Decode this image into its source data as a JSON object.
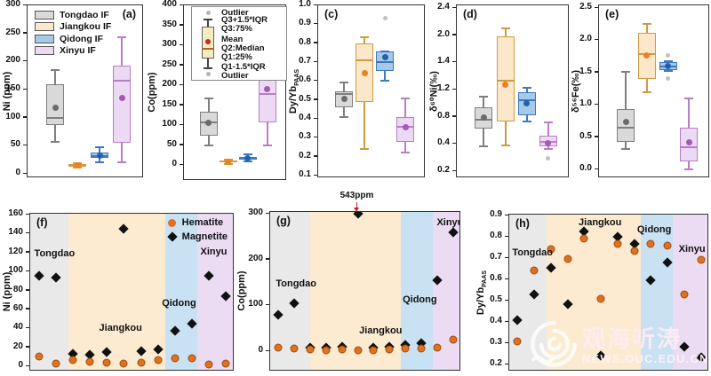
{
  "watermark": {
    "cn": "观海听涛",
    "url": "NEWS.OUC.EDU.CN"
  },
  "group_styles": [
    {
      "name": "Tongdao IF",
      "fill": "#d9d9d9",
      "stroke": "#7f7f7f",
      "accent": "#6b6b6b",
      "band": "#e9e9e9"
    },
    {
      "name": "Jiangkou IF",
      "fill": "#fbe8ca",
      "stroke": "#d09a40",
      "accent": "#e8821e",
      "band": "#fcebd0"
    },
    {
      "name": "Qidong IF",
      "fill": "#a7c9e9",
      "stroke": "#3d79bd",
      "accent": "#2062ae",
      "band": "#c8e2f4"
    },
    {
      "name": "Xinyu IF",
      "fill": "#ecd9f3",
      "stroke": "#b97cc7",
      "accent": "#a55ab4",
      "band": "#ebdcf4"
    }
  ],
  "boxplot_legend": {
    "items": [
      "Outlier",
      "Q3+1.5*IQR",
      "Q3:75%",
      "Mean",
      "Q2:Median",
      "Q1:25%",
      "Q1-1.5*IQR",
      "Outlier"
    ],
    "sample_fill": "#f6edbe",
    "sample_stroke": "#606060",
    "mean_color": "#c62828",
    "median_color": "#b4622d"
  },
  "scatter_legend": [
    {
      "label": "Hematite",
      "marker": "circle",
      "color": "#e2711d"
    },
    {
      "label": "Magnetite",
      "marker": "diamond",
      "color": "#111111"
    }
  ],
  "annotation": {
    "text": "543ppm",
    "panel": "g",
    "point_index": 5
  },
  "chart_data": [
    {
      "id": "a",
      "letter": "(a)",
      "letter_side": "right",
      "type": "box",
      "ylabel": "Ni (ppm)",
      "ymin": 0,
      "ymax": 300,
      "yticks": [
        "300",
        "250",
        "200",
        "150",
        "100",
        "50",
        "0"
      ],
      "show_group_legend": true,
      "boxes": [
        {
          "group": "Tongdao",
          "low": 57,
          "q1": 87,
          "median": 100,
          "mean": 117,
          "q3": 160,
          "high": 185,
          "outliers": []
        },
        {
          "group": "Jiangkou",
          "low": 11,
          "q1": 13,
          "median": 15,
          "mean": 15,
          "q3": 17,
          "high": 19,
          "outliers": []
        },
        {
          "group": "Qidong",
          "low": 20,
          "q1": 28,
          "median": 32,
          "mean": 33,
          "q3": 38,
          "high": 47,
          "outliers": []
        },
        {
          "group": "Xinyu",
          "low": 20,
          "q1": 55,
          "median": 166,
          "mean": 135,
          "q3": 192,
          "high": 243,
          "outliers": []
        }
      ]
    },
    {
      "id": "b",
      "letter": "(b)",
      "letter_side": "right",
      "type": "box",
      "ylabel": "Co(ppm)",
      "ymin": 0,
      "ymax": 400,
      "yticks": [
        "400",
        "350",
        "300",
        "250",
        "200",
        "150",
        "100",
        "50",
        "0"
      ],
      "show_boxplot_legend": true,
      "boxes": [
        {
          "group": "Tongdao",
          "low": 49,
          "q1": 74,
          "median": 106,
          "mean": 106,
          "q3": 134,
          "high": 166,
          "outliers": []
        },
        {
          "group": "Jiangkou",
          "low": 3,
          "q1": 6,
          "median": 8,
          "mean": 8,
          "q3": 11,
          "high": 14,
          "outliers": []
        },
        {
          "group": "Qidong",
          "low": 8,
          "q1": 13,
          "median": 16,
          "mean": 16,
          "q3": 21,
          "high": 26,
          "outliers": []
        },
        {
          "group": "Xinyu",
          "low": 49,
          "q1": 107,
          "median": 178,
          "mean": 190,
          "q3": 263,
          "high": 384,
          "outliers": []
        }
      ]
    },
    {
      "id": "c",
      "letter": "(c)",
      "letter_side": "left",
      "type": "box",
      "ylabel": "Dy/Yb",
      "ylabel_sub": "PAAS",
      "ymin": 0.1,
      "ymax": 1.0,
      "yticks": [
        "1.0",
        "0.9",
        "0.8",
        "0.7",
        "0.6",
        "0.5",
        "0.4",
        "0.3",
        "0.2",
        "0.1"
      ],
      "boxes": [
        {
          "group": "Tongdao",
          "low": 0.41,
          "q1": 0.46,
          "median": 0.53,
          "mean": 0.505,
          "q3": 0.545,
          "high": 0.59,
          "outliers": []
        },
        {
          "group": "Jiangkou",
          "low": 0.24,
          "q1": 0.49,
          "median": 0.71,
          "mean": 0.64,
          "q3": 0.8,
          "high": 0.83,
          "outliers": []
        },
        {
          "group": "Qidong",
          "low": 0.6,
          "q1": 0.655,
          "median": 0.7,
          "mean": 0.725,
          "q3": 0.755,
          "high": 0.755,
          "outliers": [
            0.93
          ]
        },
        {
          "group": "Xinyu",
          "low": 0.22,
          "q1": 0.28,
          "median": 0.36,
          "mean": 0.355,
          "q3": 0.41,
          "high": 0.51,
          "outliers": []
        }
      ]
    },
    {
      "id": "d",
      "letter": "(d)",
      "letter_side": "left",
      "type": "box",
      "ylabel": "δ⁶⁰Ni(‰)",
      "ymin": 0.0,
      "ymax": 2.4,
      "yticks": [
        "2.4",
        "2.0",
        "1.4",
        "1.2",
        "0.8",
        "0.4",
        "0.2"
      ],
      "boxes": [
        {
          "group": "Tongdao",
          "low": 0.36,
          "q1": 0.62,
          "median": 0.76,
          "mean": 0.79,
          "q3": 0.94,
          "high": 1.1,
          "outliers": []
        },
        {
          "group": "Jiangkou",
          "low": 0.38,
          "q1": 0.73,
          "median": 1.33,
          "mean": 1.27,
          "q3": 1.98,
          "high": 2.1,
          "outliers": []
        },
        {
          "group": "Qidong",
          "low": 0.73,
          "q1": 0.82,
          "median": 1.04,
          "mean": 1.0,
          "q3": 1.16,
          "high": 1.22,
          "outliers": []
        },
        {
          "group": "Xinyu",
          "low": 0.33,
          "q1": 0.37,
          "median": 0.43,
          "mean": 0.41,
          "q3": 0.52,
          "high": 0.72,
          "outliers": [
            0.19
          ]
        }
      ]
    },
    {
      "id": "e",
      "letter": "(e)",
      "letter_side": "left",
      "type": "box",
      "ylabel": "δ⁵⁶Fe(‰)",
      "ymin": 0.0,
      "ymax": 2.5,
      "yticks": [
        "2.5",
        "2.0",
        "1.5",
        "1.0",
        "0.5",
        "0.0"
      ],
      "boxes": [
        {
          "group": "Tongdao",
          "low": 0.31,
          "q1": 0.42,
          "median": 0.65,
          "mean": 0.73,
          "q3": 0.93,
          "high": 1.51,
          "outliers": []
        },
        {
          "group": "Jiangkou",
          "low": 1.2,
          "q1": 1.4,
          "median": 1.78,
          "mean": 1.76,
          "q3": 2.11,
          "high": 2.25,
          "outliers": []
        },
        {
          "group": "Qidong",
          "low": 1.52,
          "q1": 1.54,
          "median": 1.6,
          "mean": 1.6,
          "q3": 1.66,
          "high": 1.68,
          "outliers": [
            1.77,
            1.41
          ]
        },
        {
          "group": "Xinyu",
          "low": 0.0,
          "q1": 0.13,
          "median": 0.35,
          "mean": 0.42,
          "q3": 0.65,
          "high": 1.1,
          "outliers": []
        }
      ]
    },
    {
      "id": "f",
      "letter": "(f)",
      "letter_side": "left",
      "type": "scatter",
      "ylabel": "Ni (ppm)",
      "ymin": 0,
      "ymax": 160,
      "yticks": [
        "160",
        "140",
        "120",
        "100",
        "80",
        "60",
        "40",
        "20",
        "0"
      ],
      "show_scatter_legend": true,
      "bands": [
        {
          "name": "Tongdao",
          "from": 0,
          "to": 0.19
        },
        {
          "name": "Jiangkou",
          "from": 0.19,
          "to": 0.665
        },
        {
          "name": "Qidong",
          "from": 0.665,
          "to": 0.825
        },
        {
          "name": "Xinyu",
          "from": 0.825,
          "to": 1
        }
      ],
      "region_labels": [
        {
          "text": "Tongdao",
          "x": 0.02,
          "y": 0.22
        },
        {
          "text": "Jiangkou",
          "x": 0.34,
          "y": 0.7
        },
        {
          "text": "Qidong",
          "x": 0.65,
          "y": 0.54
        },
        {
          "text": "Xinyu",
          "x": 0.84,
          "y": 0.21
        }
      ],
      "series": [
        {
          "name": "Magnetite",
          "marker": "diamond",
          "color": "#111111",
          "values": [
            95,
            94,
            13,
            12,
            15,
            145,
            16,
            18,
            37,
            45,
            95,
            74
          ]
        },
        {
          "name": "Hematite",
          "marker": "circle",
          "color": "#e2711d",
          "values": [
            10,
            3,
            7,
            5,
            4,
            3,
            4,
            7,
            8,
            8,
            2,
            3
          ]
        }
      ]
    },
    {
      "id": "g",
      "letter": "(g)",
      "letter_side": "left",
      "type": "scatter",
      "ylabel": "Co(ppm)",
      "ymin": 0,
      "ymax": 300,
      "yticks": [
        "300",
        "200",
        "100",
        "0"
      ],
      "bands": [
        {
          "name": "Tongdao",
          "from": 0,
          "to": 0.21
        },
        {
          "name": "Jiangkou",
          "from": 0.21,
          "to": 0.69
        },
        {
          "name": "Qidong",
          "from": 0.69,
          "to": 0.86
        },
        {
          "name": "Xinyu",
          "from": 0.86,
          "to": 1
        }
      ],
      "region_labels": [
        {
          "text": "Tongdao",
          "x": 0.03,
          "y": 0.42
        },
        {
          "text": "Jiangkou",
          "x": 0.47,
          "y": 0.72
        },
        {
          "text": "Qidong",
          "x": 0.7,
          "y": 0.52
        },
        {
          "text": "Xinyu",
          "x": 0.88,
          "y": 0.035
        }
      ],
      "series": [
        {
          "name": "Magnetite",
          "marker": "diamond",
          "color": "#111111",
          "values": [
            80,
            105,
            8,
            8,
            10,
            300,
            8,
            10,
            13,
            18,
            155,
            260
          ]
        },
        {
          "name": "Hematite",
          "marker": "circle",
          "color": "#e2711d",
          "values": [
            8,
            5,
            3,
            2,
            4,
            2,
            2,
            3,
            5,
            5,
            7,
            25
          ]
        }
      ]
    },
    {
      "id": "h",
      "letter": "(h)",
      "letter_side": "left",
      "type": "scatter",
      "ylabel": "Dy/Yb",
      "ylabel_sub": "PAAS",
      "ymin": 0.2,
      "ymax": 0.9,
      "yticks": [
        "0.9",
        "0.8",
        "0.7",
        "0.6",
        "0.5",
        "0.4",
        "0.3",
        "0.2"
      ],
      "bands": [
        {
          "name": "Tongdao",
          "from": 0,
          "to": 0.19
        },
        {
          "name": "Jiangkou",
          "from": 0.19,
          "to": 0.665
        },
        {
          "name": "Qidong",
          "from": 0.665,
          "to": 0.825
        },
        {
          "name": "Xinyu",
          "from": 0.825,
          "to": 1
        }
      ],
      "region_labels": [
        {
          "text": "Tongdao",
          "x": 0.015,
          "y": 0.21
        },
        {
          "text": "Jiangkou",
          "x": 0.35,
          "y": 0.015
        },
        {
          "text": "Qidong",
          "x": 0.645,
          "y": 0.06
        },
        {
          "text": "Xinyu",
          "x": 0.855,
          "y": 0.19
        }
      ],
      "series": [
        {
          "name": "Magnetite",
          "marker": "diamond",
          "color": "#111111",
          "values": [
            0.41,
            0.53,
            0.655,
            0.485,
            0.825,
            0.24,
            0.8,
            0.765,
            0.595,
            0.68,
            0.285,
            0.235
          ]
        },
        {
          "name": "Hematite",
          "marker": "circle",
          "color": "#e2711d",
          "values": [
            0.31,
            0.64,
            0.74,
            0.695,
            0.79,
            0.51,
            0.765,
            0.735,
            0.765,
            0.76,
            0.53,
            0.69
          ]
        }
      ]
    }
  ]
}
